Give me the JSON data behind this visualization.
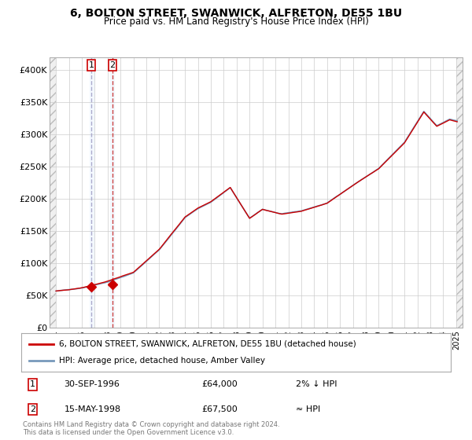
{
  "title": "6, BOLTON STREET, SWANWICK, ALFRETON, DE55 1BU",
  "subtitle": "Price paid vs. HM Land Registry's House Price Index (HPI)",
  "sale1_date": 1996.75,
  "sale1_price": 64000,
  "sale2_date": 1998.37,
  "sale2_price": 67500,
  "legend_line1": "6, BOLTON STREET, SWANWICK, ALFRETON, DE55 1BU (detached house)",
  "legend_line2": "HPI: Average price, detached house, Amber Valley",
  "table_row1": [
    "1",
    "30-SEP-1996",
    "£64,000",
    "2% ↓ HPI"
  ],
  "table_row2": [
    "2",
    "15-MAY-1998",
    "£67,500",
    "≈ HPI"
  ],
  "footer": "Contains HM Land Registry data © Crown copyright and database right 2024.\nThis data is licensed under the Open Government Licence v3.0.",
  "line_color": "#cc0000",
  "hpi_color": "#7799bb",
  "marker_color": "#cc0000",
  "vline1_color": "#aaaacc",
  "vline2_color": "#cc4444",
  "shade1_color": "#ddeeff",
  "shade2_color": "#ddeeff",
  "ylim": [
    0,
    420000
  ],
  "xlim_left": 1993.5,
  "xlim_right": 2025.5
}
